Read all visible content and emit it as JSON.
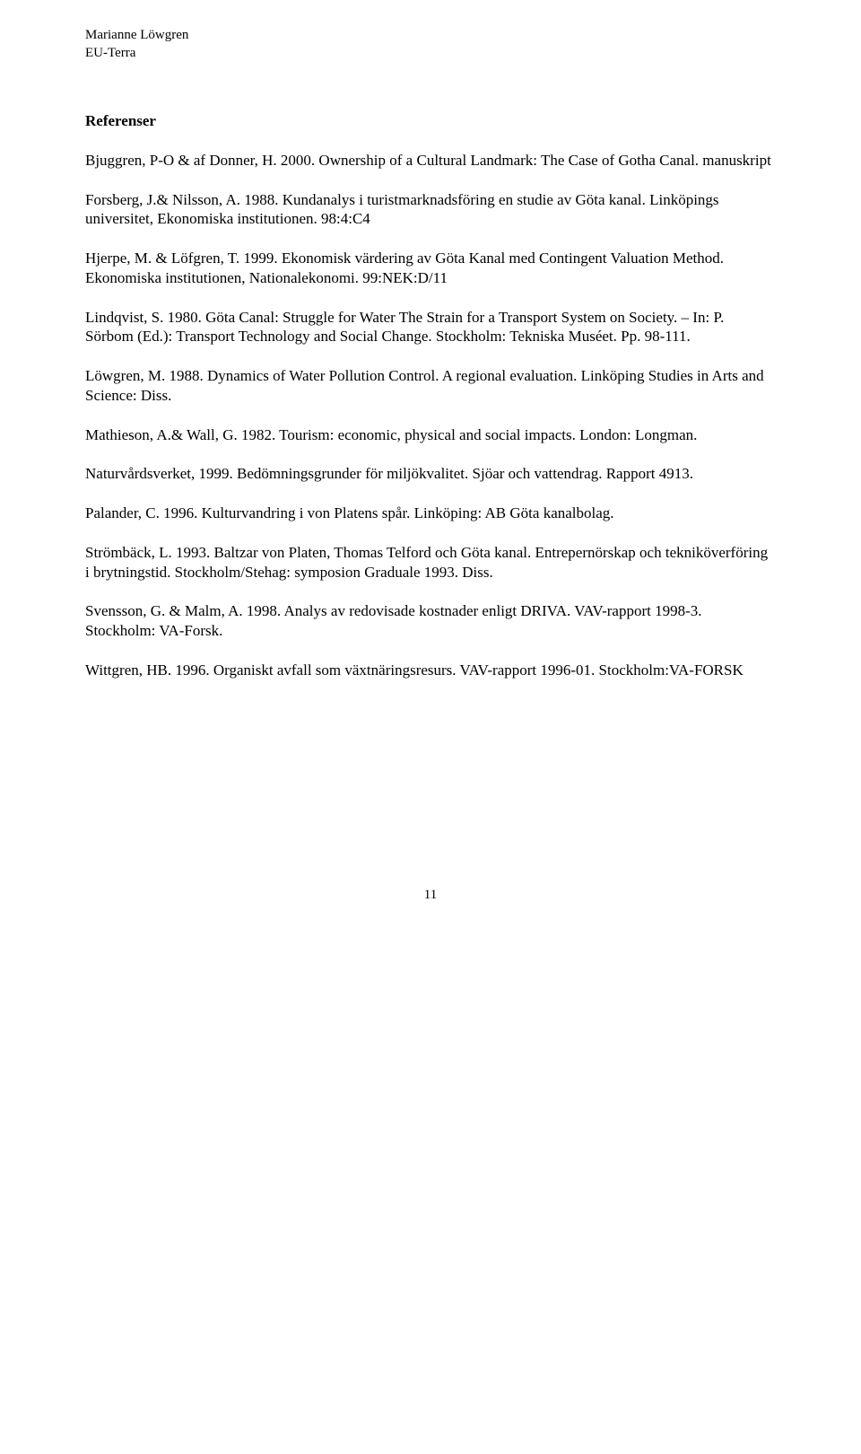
{
  "header": {
    "line1": "Marianne Löwgren",
    "line2": "EU-Terra"
  },
  "section_title": "Referenser",
  "references": [
    "Bjuggren, P-O & af Donner, H. 2000. Ownership of a Cultural Landmark: The Case of Gotha Canal. manuskript",
    "Forsberg, J.& Nilsson, A. 1988. Kundanalys i turistmarknadsföring en studie av Göta kanal. Linköpings universitet, Ekonomiska institutionen. 98:4:C4",
    "Hjerpe, M. & Löfgren, T. 1999. Ekonomisk värdering av Göta Kanal med Contingent Valuation Method. Ekonomiska institutionen, Nationalekonomi. 99:NEK:D/11",
    "Lindqvist, S. 1980. Göta Canal: Struggle for Water The Strain for a Transport System on Society. – In: P. Sörbom (Ed.): Transport Technology and Social Change. Stockholm: Tekniska Muséet. Pp. 98-111.",
    "Löwgren, M. 1988. Dynamics of Water Pollution Control. A regional evaluation. Linköping Studies in Arts and Science: Diss.",
    "Mathieson, A.& Wall, G. 1982. Tourism: economic, physical and social impacts. London: Longman.",
    "Naturvårdsverket, 1999. Bedömningsgrunder för miljökvalitet. Sjöar och vattendrag.  Rapport 4913.",
    "Palander, C. 1996. Kulturvandring i von Platens spår. Linköping: AB Göta kanalbolag.",
    "Strömbäck, L. 1993. Baltzar von Platen, Thomas Telford och Göta kanal. Entrepernörskap och tekniköverföring i brytningstid. Stockholm/Stehag: symposion Graduale 1993. Diss.",
    "Svensson, G. & Malm, A. 1998. Analys av redovisade kostnader enligt DRIVA. VAV-rapport 1998-3. Stockholm: VA-Forsk.",
    "Wittgren, HB. 1996. Organiskt avfall som växtnäringsresurs. VAV-rapport 1996-01. Stockholm:VA-FORSK"
  ],
  "page_number": "11"
}
